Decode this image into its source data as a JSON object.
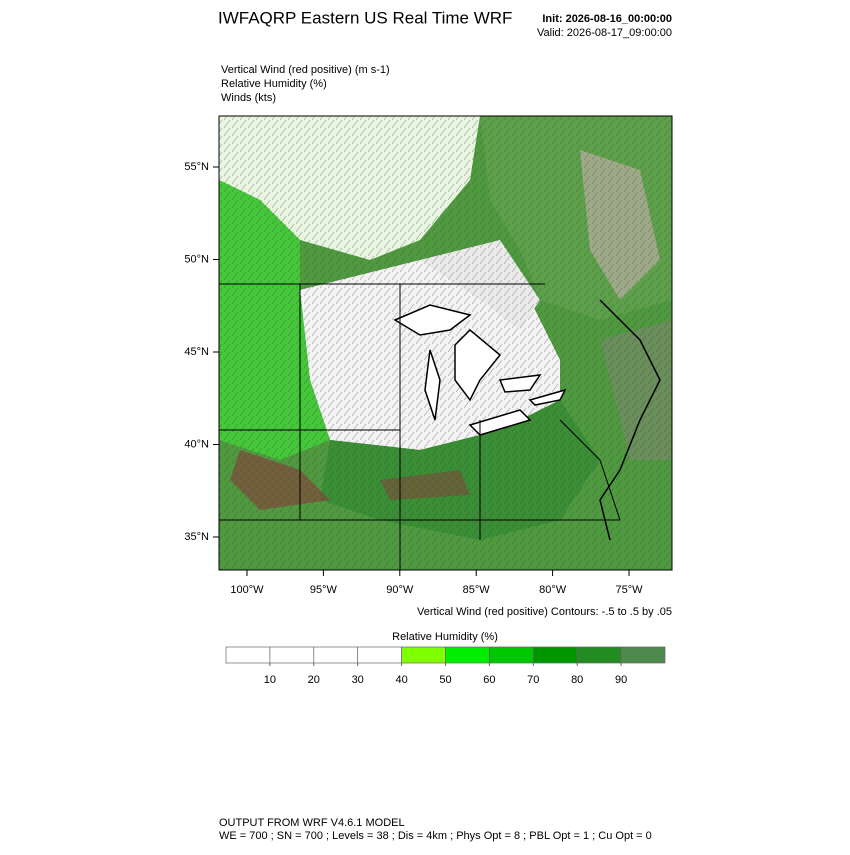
{
  "header": {
    "title": "IWFAQRP Eastern US Real Time WRF",
    "init": "Init: 2026-08-16_00:00:00",
    "valid": "Valid: 2026-08-17_09:00:00"
  },
  "fields": [
    "Vertical Wind (red positive)   (m s-1)",
    "Relative Humidity   (%)",
    "Winds   (kts)"
  ],
  "map": {
    "lat_ticks": [
      {
        "value": 55,
        "label": "55°N"
      },
      {
        "value": 50,
        "label": "50°N"
      },
      {
        "value": 45,
        "label": "45°N"
      },
      {
        "value": 40,
        "label": "40°N"
      },
      {
        "value": 35,
        "label": "35°N"
      }
    ],
    "lon_ticks": [
      {
        "value": -100,
        "label": "100°W"
      },
      {
        "value": -95,
        "label": "95°W"
      },
      {
        "value": -90,
        "label": "90°W"
      },
      {
        "value": -85,
        "label": "85°W"
      },
      {
        "value": -80,
        "label": "80°W"
      },
      {
        "value": -75,
        "label": "75°W"
      }
    ],
    "contour_note": "Vertical Wind (red positive) Contours: -.5 to .5 by .05"
  },
  "colorbar": {
    "title": "Relative Humidity  (%)",
    "levels": [
      10,
      20,
      30,
      40,
      50,
      60,
      70,
      80,
      90
    ],
    "colors": [
      "#ffffff",
      "#ffffff",
      "#ffffff",
      "#ffffff",
      "#80ff00",
      "#00ee00",
      "#00c800",
      "#009600",
      "#228b22",
      "#4e8a4e"
    ]
  },
  "footer": [
    "OUTPUT FROM WRF V4.6.1 MODEL",
    "WE = 700 ; SN = 700 ; Levels = 38 ; Dis = 4km ; Phys Opt = 8 ; PBL Opt = 1 ; Cu Opt = 0"
  ]
}
